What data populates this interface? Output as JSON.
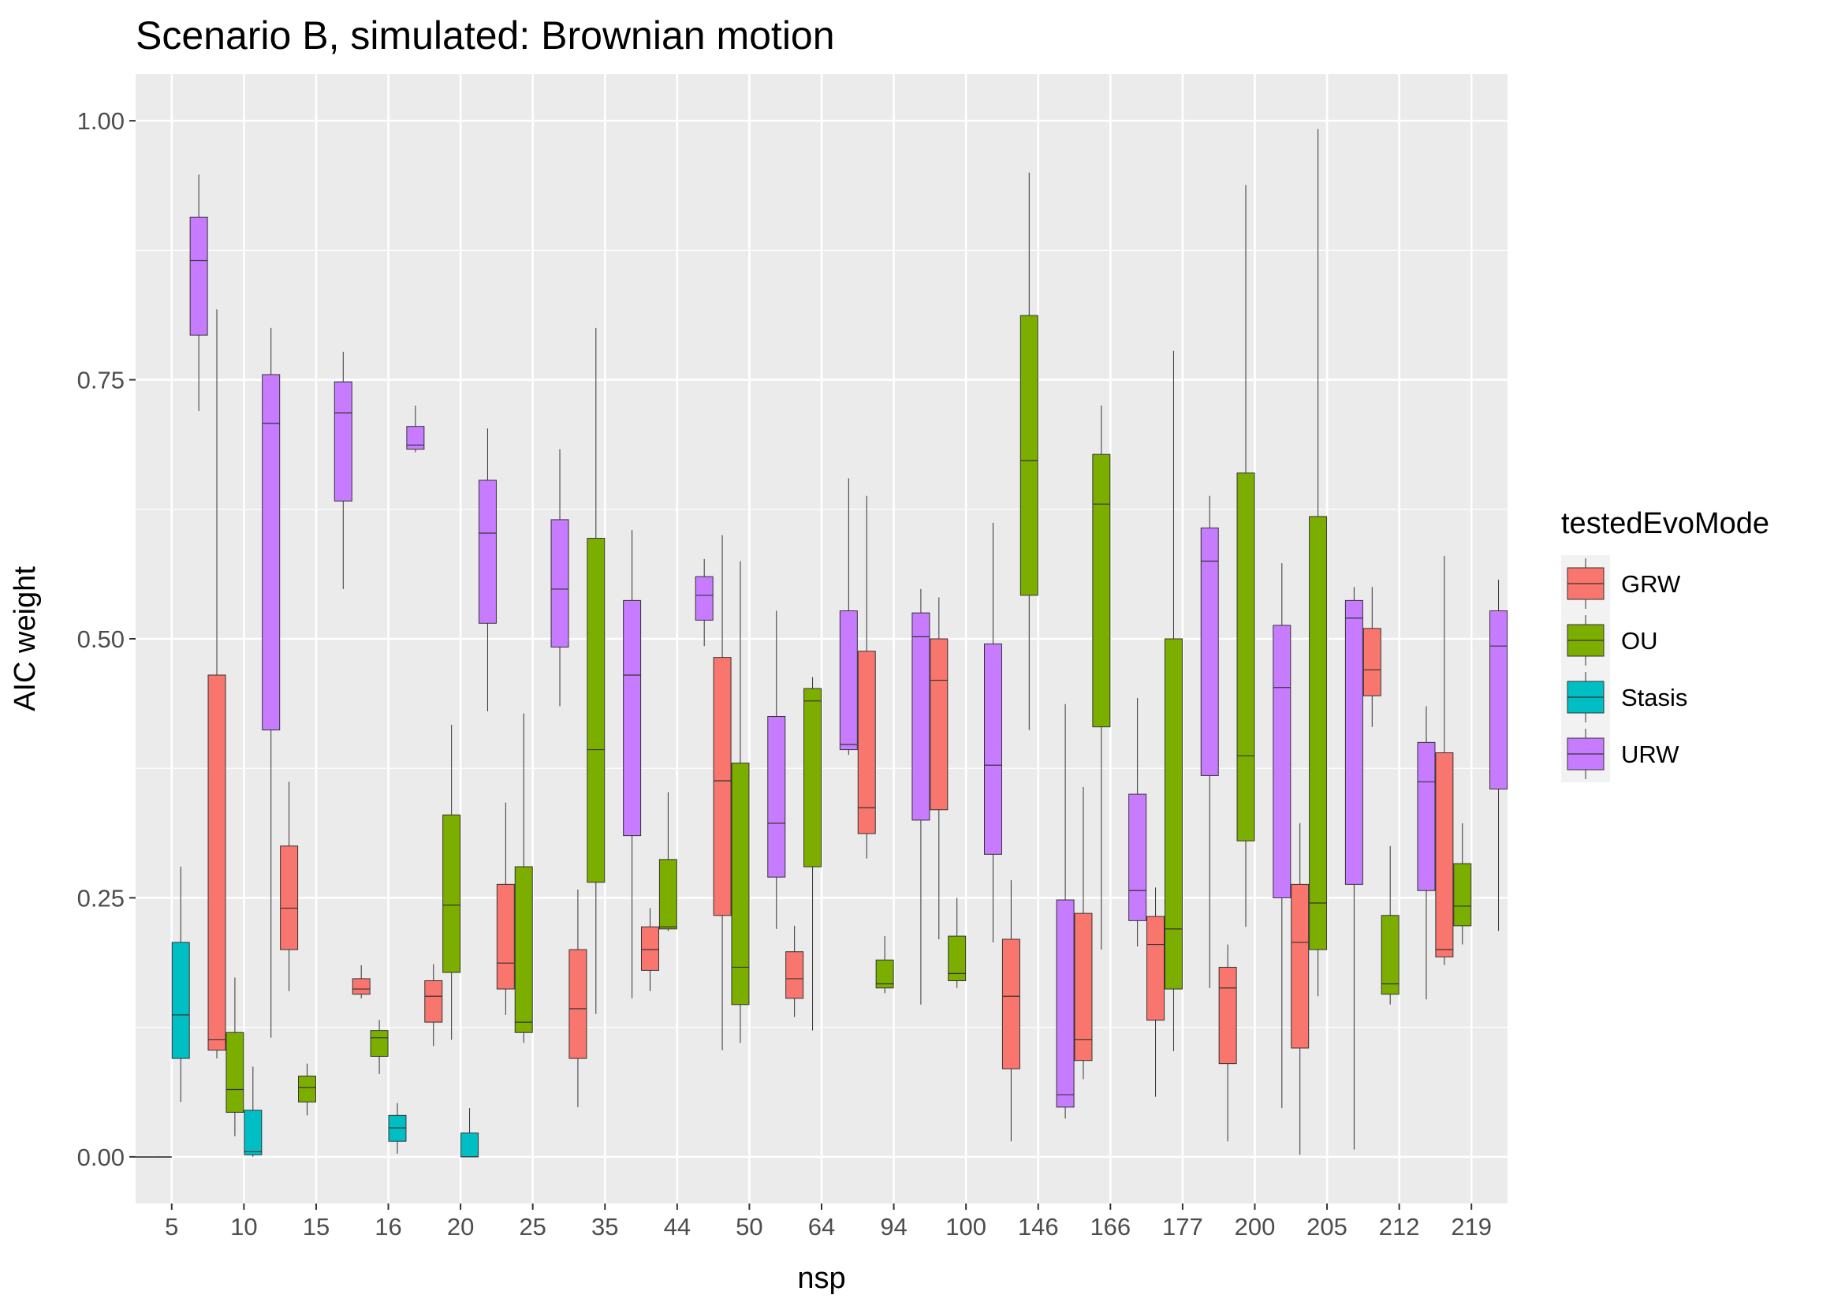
{
  "chart_data": {
    "type": "box",
    "title": "Scenario B, simulated: Brownian motion",
    "xlabel": "nsp",
    "ylabel": "AIC weight",
    "ylim": [
      -0.045,
      1.045
    ],
    "yticks": [
      0.0,
      0.25,
      0.5,
      0.75,
      1.0
    ],
    "ytick_labels": [
      "0.00",
      "0.25",
      "0.50",
      "0.75",
      "1.00"
    ],
    "categories": [
      "5",
      "10",
      "15",
      "16",
      "20",
      "25",
      "35",
      "44",
      "50",
      "64",
      "94",
      "100",
      "146",
      "166",
      "177",
      "200",
      "205",
      "212",
      "219"
    ],
    "grid": true,
    "legend": {
      "title": "testedEvoMode",
      "placement": "right"
    },
    "series": [
      {
        "name": "GRW",
        "color": "#F8766D",
        "boxes": [
          {
            "min": 0.0,
            "q1": 0.0,
            "median": 0.0,
            "q3": 0.0,
            "max": 0.0
          },
          {
            "min": 0.095,
            "q1": 0.103,
            "median": 0.113,
            "q3": 0.465,
            "max": 0.818
          },
          {
            "min": 0.16,
            "q1": 0.2,
            "median": 0.24,
            "q3": 0.3,
            "max": 0.362
          },
          {
            "min": 0.153,
            "q1": 0.157,
            "median": 0.162,
            "q3": 0.172,
            "max": 0.185
          },
          {
            "min": 0.107,
            "q1": 0.13,
            "median": 0.155,
            "q3": 0.17,
            "max": 0.186
          },
          {
            "min": 0.137,
            "q1": 0.162,
            "median": 0.187,
            "q3": 0.263,
            "max": 0.342
          },
          {
            "min": 0.048,
            "q1": 0.095,
            "median": 0.143,
            "q3": 0.2,
            "max": 0.258
          },
          {
            "min": 0.16,
            "q1": 0.18,
            "median": 0.2,
            "q3": 0.222,
            "max": 0.24
          },
          {
            "min": 0.103,
            "q1": 0.233,
            "median": 0.363,
            "q3": 0.482,
            "max": 0.6
          },
          {
            "min": 0.135,
            "q1": 0.153,
            "median": 0.172,
            "q3": 0.198,
            "max": 0.223
          },
          {
            "min": 0.288,
            "q1": 0.312,
            "median": 0.337,
            "q3": 0.488,
            "max": 0.638
          },
          {
            "min": 0.21,
            "q1": 0.335,
            "median": 0.46,
            "q3": 0.5,
            "max": 0.54
          },
          {
            "min": 0.015,
            "q1": 0.085,
            "median": 0.155,
            "q3": 0.21,
            "max": 0.267
          },
          {
            "min": 0.075,
            "q1": 0.093,
            "median": 0.113,
            "q3": 0.235,
            "max": 0.357
          },
          {
            "min": 0.058,
            "q1": 0.132,
            "median": 0.205,
            "q3": 0.232,
            "max": 0.26
          },
          {
            "min": 0.015,
            "q1": 0.09,
            "median": 0.163,
            "q3": 0.183,
            "max": 0.205
          },
          {
            "min": 0.002,
            "q1": 0.105,
            "median": 0.207,
            "q3": 0.263,
            "max": 0.322
          },
          {
            "min": 0.415,
            "q1": 0.445,
            "median": 0.47,
            "q3": 0.51,
            "max": 0.55
          },
          {
            "min": 0.185,
            "q1": 0.193,
            "median": 0.2,
            "q3": 0.39,
            "max": 0.58
          }
        ]
      },
      {
        "name": "OU",
        "color": "#7CAE00",
        "boxes": [
          {
            "min": 0.0,
            "q1": 0.0,
            "median": 0.0,
            "q3": 0.0,
            "max": 0.0
          },
          {
            "min": 0.02,
            "q1": 0.043,
            "median": 0.065,
            "q3": 0.12,
            "max": 0.173
          },
          {
            "min": 0.04,
            "q1": 0.053,
            "median": 0.067,
            "q3": 0.078,
            "max": 0.09
          },
          {
            "min": 0.08,
            "q1": 0.097,
            "median": 0.115,
            "q3": 0.122,
            "max": 0.132
          },
          {
            "min": 0.113,
            "q1": 0.178,
            "median": 0.243,
            "q3": 0.33,
            "max": 0.417
          },
          {
            "min": 0.11,
            "q1": 0.12,
            "median": 0.13,
            "q3": 0.28,
            "max": 0.428
          },
          {
            "min": 0.138,
            "q1": 0.265,
            "median": 0.393,
            "q3": 0.597,
            "max": 0.8
          },
          {
            "min": 0.218,
            "q1": 0.22,
            "median": 0.222,
            "q3": 0.287,
            "max": 0.352
          },
          {
            "min": 0.11,
            "q1": 0.147,
            "median": 0.183,
            "q3": 0.38,
            "max": 0.575
          },
          {
            "min": 0.122,
            "q1": 0.28,
            "median": 0.44,
            "q3": 0.452,
            "max": 0.463
          },
          {
            "min": 0.158,
            "q1": 0.163,
            "median": 0.167,
            "q3": 0.19,
            "max": 0.213
          },
          {
            "min": 0.163,
            "q1": 0.17,
            "median": 0.177,
            "q3": 0.213,
            "max": 0.25
          },
          {
            "min": 0.412,
            "q1": 0.542,
            "median": 0.672,
            "q3": 0.812,
            "max": 0.95
          },
          {
            "min": 0.2,
            "q1": 0.415,
            "median": 0.63,
            "q3": 0.678,
            "max": 0.725
          },
          {
            "min": 0.102,
            "q1": 0.162,
            "median": 0.22,
            "q3": 0.5,
            "max": 0.778
          },
          {
            "min": 0.222,
            "q1": 0.305,
            "median": 0.387,
            "q3": 0.66,
            "max": 0.938
          },
          {
            "min": 0.155,
            "q1": 0.2,
            "median": 0.245,
            "q3": 0.618,
            "max": 0.992
          },
          {
            "min": 0.147,
            "q1": 0.157,
            "median": 0.167,
            "q3": 0.233,
            "max": 0.3
          },
          {
            "min": 0.205,
            "q1": 0.223,
            "median": 0.242,
            "q3": 0.283,
            "max": 0.322
          }
        ]
      },
      {
        "name": "Stasis",
        "color": "#00BFC4",
        "boxes": [
          {
            "min": 0.053,
            "q1": 0.095,
            "median": 0.137,
            "q3": 0.207,
            "max": 0.28
          },
          {
            "min": 0.0,
            "q1": 0.002,
            "median": 0.005,
            "q3": 0.045,
            "max": 0.087
          },
          null,
          {
            "min": 0.003,
            "q1": 0.015,
            "median": 0.028,
            "q3": 0.04,
            "max": 0.052
          },
          {
            "min": 0.0,
            "q1": 0.0,
            "median": 0.0,
            "q3": 0.023,
            "max": 0.047
          },
          null,
          null,
          null,
          null,
          null,
          null,
          null,
          null,
          null,
          null,
          null,
          null,
          null,
          null
        ]
      },
      {
        "name": "URW",
        "color": "#C77CFF",
        "boxes": [
          {
            "min": 0.72,
            "q1": 0.793,
            "median": 0.865,
            "q3": 0.907,
            "max": 0.948
          },
          {
            "min": 0.115,
            "q1": 0.412,
            "median": 0.708,
            "q3": 0.755,
            "max": 0.8
          },
          {
            "min": 0.548,
            "q1": 0.633,
            "median": 0.718,
            "q3": 0.748,
            "max": 0.777
          },
          {
            "min": 0.68,
            "q1": 0.683,
            "median": 0.687,
            "q3": 0.705,
            "max": 0.725
          },
          {
            "min": 0.43,
            "q1": 0.515,
            "median": 0.602,
            "q3": 0.653,
            "max": 0.703
          },
          {
            "min": 0.435,
            "q1": 0.492,
            "median": 0.548,
            "q3": 0.615,
            "max": 0.683
          },
          {
            "min": 0.153,
            "q1": 0.31,
            "median": 0.465,
            "q3": 0.537,
            "max": 0.605
          },
          {
            "min": 0.493,
            "q1": 0.518,
            "median": 0.542,
            "q3": 0.56,
            "max": 0.577
          },
          {
            "min": 0.22,
            "q1": 0.27,
            "median": 0.322,
            "q3": 0.425,
            "max": 0.527
          },
          {
            "min": 0.388,
            "q1": 0.393,
            "median": 0.398,
            "q3": 0.527,
            "max": 0.655
          },
          {
            "min": 0.147,
            "q1": 0.325,
            "median": 0.502,
            "q3": 0.525,
            "max": 0.548
          },
          {
            "min": 0.207,
            "q1": 0.292,
            "median": 0.378,
            "q3": 0.495,
            "max": 0.612
          },
          {
            "min": 0.037,
            "q1": 0.048,
            "median": 0.06,
            "q3": 0.248,
            "max": 0.437
          },
          {
            "min": 0.203,
            "q1": 0.228,
            "median": 0.257,
            "q3": 0.35,
            "max": 0.443
          },
          {
            "min": 0.163,
            "q1": 0.368,
            "median": 0.575,
            "q3": 0.607,
            "max": 0.638
          },
          {
            "min": 0.047,
            "q1": 0.25,
            "median": 0.453,
            "q3": 0.513,
            "max": 0.573
          },
          {
            "min": 0.007,
            "q1": 0.263,
            "median": 0.52,
            "q3": 0.537,
            "max": 0.55
          },
          {
            "min": 0.152,
            "q1": 0.257,
            "median": 0.362,
            "q3": 0.4,
            "max": 0.435
          },
          {
            "min": 0.218,
            "q1": 0.355,
            "median": 0.493,
            "q3": 0.527,
            "max": 0.557
          }
        ]
      }
    ]
  }
}
